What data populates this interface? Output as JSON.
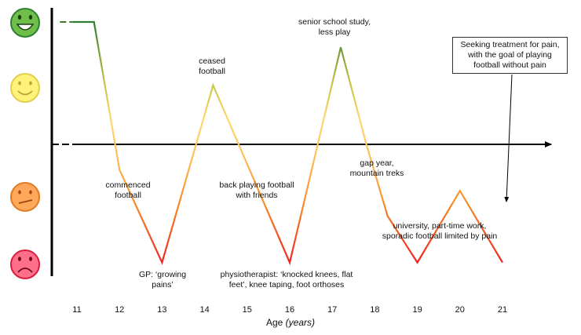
{
  "chart_data": {
    "type": "line",
    "title": "",
    "xlabel": "Age",
    "xlabel_unit": "(years)",
    "x_ticks": [
      "11",
      "12",
      "13",
      "14",
      "15",
      "16",
      "17",
      "18",
      "19",
      "20",
      "21"
    ],
    "y_scale": "pain/wellbeing (very happy to very sad faces)",
    "ylim": [
      -3,
      3
    ],
    "series": [
      {
        "name": "wellbeing",
        "points": [
          {
            "x": 10.6,
            "y": 2.9,
            "style": "dashed"
          },
          {
            "x": 10.9,
            "y": 2.9
          },
          {
            "x": 11.4,
            "y": 2.9
          },
          {
            "x": 12.0,
            "y": -0.6
          },
          {
            "x": 13.0,
            "y": -2.8
          },
          {
            "x": 14.2,
            "y": 1.4
          },
          {
            "x": 16.0,
            "y": -2.8
          },
          {
            "x": 17.2,
            "y": 2.3
          },
          {
            "x": 17.8,
            "y": 0.0
          },
          {
            "x": 18.3,
            "y": -1.7
          },
          {
            "x": 19.0,
            "y": -2.8
          },
          {
            "x": 20.0,
            "y": -1.1
          },
          {
            "x": 21.0,
            "y": -2.8
          }
        ]
      }
    ],
    "annotations": [
      {
        "text": "commenced football",
        "x": 12
      },
      {
        "text": "GP: ‘growing pains’",
        "x": 13
      },
      {
        "text": "ceased football",
        "x": 14
      },
      {
        "text": "back playing football with friends",
        "x": 15
      },
      {
        "text": "physiotherapist: ‘knocked knees, flat feet’, knee taping, foot orthoses",
        "x": 16
      },
      {
        "text": "senior school study, less play",
        "x": 17
      },
      {
        "text": "gap year, mountain treks",
        "x": 18
      },
      {
        "text": "university, part-time work, sporadic football limited by pain",
        "x": 20
      },
      {
        "text": "Seeking treatment for pain, with the goal of playing football without pain",
        "x": 21
      }
    ]
  },
  "labels": {
    "commenced": [
      "commenced",
      "football"
    ],
    "gp": [
      "GP: ‘growing",
      "pains’"
    ],
    "ceased": [
      "ceased",
      "football"
    ],
    "back": [
      "back playing football",
      "with friends"
    ],
    "physio": [
      "physiotherapist: ‘knocked knees, flat",
      "feet’, knee taping, foot orthoses"
    ],
    "senior": [
      "senior school study,",
      "less play"
    ],
    "gap": [
      "gap year,",
      "mountain treks"
    ],
    "university": [
      "university, part-time work,",
      "sporadic football limited by pain"
    ],
    "callout": [
      "Seeking treatment for pain,",
      "with the goal of playing",
      "football without pain"
    ]
  },
  "axis": {
    "title": "Age",
    "unit": "(years)"
  },
  "faces": [
    {
      "name": "very-happy-face-icon",
      "fill": "#6fbe4a",
      "stroke": "#2e7d32"
    },
    {
      "name": "happy-face-icon",
      "fill": "#fff27a",
      "stroke": "#e0cf4a"
    },
    {
      "name": "unhappy-face-icon",
      "fill": "#ffa85a",
      "stroke": "#e07a20"
    },
    {
      "name": "sad-face-icon",
      "fill": "#ff6f8a",
      "stroke": "#d81b3c"
    }
  ]
}
